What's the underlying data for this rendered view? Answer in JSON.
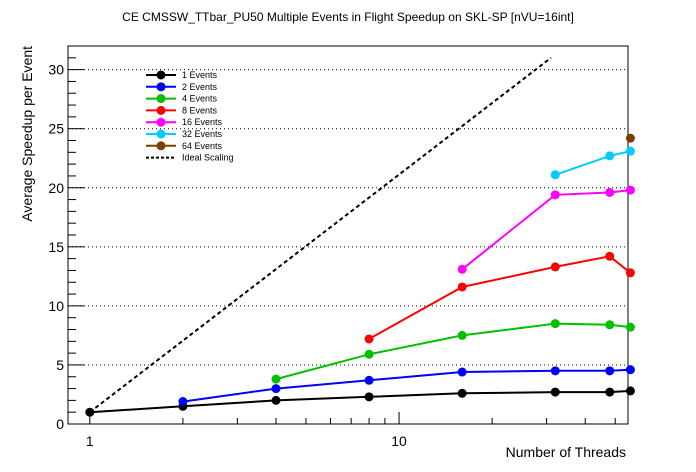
{
  "chart_data": {
    "type": "line",
    "title": "CE CMSSW_TTbar_PU50 Multiple Events in Flight Speedup on SKL-SP [nVU=16int]",
    "xlabel": "Number of Threads",
    "ylabel": "Average Speedup per Event",
    "xscale": "log",
    "xlim": [
      0.85,
      55
    ],
    "ylim": [
      0,
      32
    ],
    "x_ticks": [
      1,
      10
    ],
    "y_ticks": [
      0,
      5,
      10,
      15,
      20,
      25,
      30
    ],
    "grid": "horizontal dotted",
    "legend_position": "top-left",
    "series": [
      {
        "name": "1 Events",
        "color": "#000000",
        "x": [
          1,
          2,
          4,
          8,
          16,
          32,
          48,
          56
        ],
        "y": [
          1.0,
          1.5,
          2.0,
          2.3,
          2.6,
          2.7,
          2.7,
          2.8
        ]
      },
      {
        "name": "2 Events",
        "color": "#0000ff",
        "x": [
          2,
          4,
          8,
          16,
          32,
          48,
          56
        ],
        "y": [
          1.9,
          3.0,
          3.7,
          4.4,
          4.5,
          4.5,
          4.6
        ]
      },
      {
        "name": "4 Events",
        "color": "#00c000",
        "x": [
          4,
          8,
          16,
          32,
          48,
          56
        ],
        "y": [
          3.8,
          5.9,
          7.5,
          8.5,
          8.4,
          8.2
        ]
      },
      {
        "name": "8 Events",
        "color": "#ff0000",
        "x": [
          8,
          16,
          32,
          48,
          56
        ],
        "y": [
          7.2,
          11.6,
          13.3,
          14.2,
          12.8
        ]
      },
      {
        "name": "16 Events",
        "color": "#ff00ff",
        "x": [
          16,
          32,
          48,
          56
        ],
        "y": [
          13.1,
          19.4,
          19.6,
          19.8
        ]
      },
      {
        "name": "32 Events",
        "color": "#00ccff",
        "x": [
          32,
          48,
          56
        ],
        "y": [
          21.1,
          22.7,
          23.1
        ]
      },
      {
        "name": "64 Events",
        "color": "#7b3f00",
        "x": [
          56
        ],
        "y": [
          24.2
        ]
      },
      {
        "name": "Ideal Scaling",
        "color": "#000000",
        "dashed": true,
        "x": [
          1,
          31
        ],
        "y": [
          1,
          31
        ]
      }
    ]
  }
}
